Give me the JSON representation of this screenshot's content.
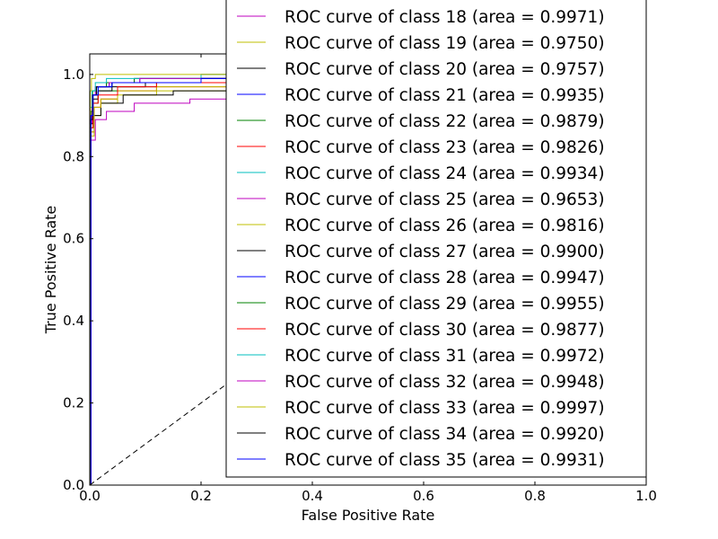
{
  "chart_data": {
    "type": "line",
    "title": "",
    "xlabel": "False Positive Rate",
    "ylabel": "True Positive Rate",
    "xlim": [
      0.0,
      1.0
    ],
    "ylim": [
      0.0,
      1.05
    ],
    "grid": false,
    "legend_placement": "top-right, extending above the plot area",
    "x_ticks": [
      "0.0",
      "0.2",
      "0.4",
      "0.6",
      "0.8",
      "1.0"
    ],
    "y_ticks": [
      "0.0",
      "0.2",
      "0.4",
      "0.6",
      "0.8",
      "1.0"
    ],
    "chance_line": {
      "x": [
        0,
        1
      ],
      "y": [
        0,
        1
      ],
      "style": "dashed",
      "color": "#000000"
    },
    "series": [
      {
        "name": "ROC curve of class 18 (area = 0.9971)",
        "color": "#bf00bf",
        "x": [
          0,
          0.001,
          0.004,
          0.01,
          0.03,
          0.08,
          0.2,
          1.0
        ],
        "y": [
          0,
          0.88,
          0.95,
          0.97,
          0.98,
          0.99,
          1.0,
          1.0
        ]
      },
      {
        "name": "ROC curve of class 19 (area = 0.9750)",
        "color": "#bfbf00",
        "x": [
          0,
          0.002,
          0.008,
          0.02,
          0.05,
          0.12,
          0.25,
          1.0
        ],
        "y": [
          0,
          0.85,
          0.9,
          0.93,
          0.95,
          0.96,
          0.97,
          1.0
        ]
      },
      {
        "name": "ROC curve of class 20 (area = 0.9757)",
        "color": "#000000",
        "x": [
          0,
          0.002,
          0.008,
          0.02,
          0.06,
          0.15,
          0.3,
          1.0
        ],
        "y": [
          0,
          0.86,
          0.9,
          0.93,
          0.95,
          0.96,
          0.98,
          1.0
        ]
      },
      {
        "name": "ROC curve of class 21 (area = 0.9935)",
        "color": "#0000ff",
        "x": [
          0,
          0.002,
          0.006,
          0.015,
          0.04,
          0.1,
          0.2,
          1.0
        ],
        "y": [
          0,
          0.9,
          0.95,
          0.97,
          0.98,
          0.98,
          0.99,
          1.0
        ]
      },
      {
        "name": "ROC curve of class 22 (area = 0.9879)",
        "color": "#008000",
        "x": [
          0,
          0.002,
          0.006,
          0.015,
          0.05,
          0.12,
          0.25,
          1.0
        ],
        "y": [
          0,
          0.87,
          0.93,
          0.96,
          0.97,
          0.98,
          0.99,
          1.0
        ]
      },
      {
        "name": "ROC curve of class 23 (area = 0.9826)",
        "color": "#ff0000",
        "x": [
          0,
          0.002,
          0.008,
          0.02,
          0.05,
          0.12,
          0.25,
          1.0
        ],
        "y": [
          0,
          0.86,
          0.92,
          0.94,
          0.96,
          0.97,
          0.98,
          1.0
        ]
      },
      {
        "name": "ROC curve of class 24 (area = 0.9934)",
        "color": "#00bfbf",
        "x": [
          0,
          0.002,
          0.006,
          0.015,
          0.04,
          0.1,
          0.2,
          1.0
        ],
        "y": [
          0,
          0.9,
          0.95,
          0.97,
          0.98,
          0.98,
          0.99,
          1.0
        ]
      },
      {
        "name": "ROC curve of class 25 (area = 0.9653)",
        "color": "#bf00bf",
        "x": [
          0,
          0.002,
          0.01,
          0.03,
          0.08,
          0.18,
          0.3,
          1.0
        ],
        "y": [
          0,
          0.84,
          0.89,
          0.91,
          0.93,
          0.94,
          0.94,
          1.0
        ]
      },
      {
        "name": "ROC curve of class 26 (area = 0.9816)",
        "color": "#bfbf00",
        "x": [
          0,
          0.002,
          0.008,
          0.02,
          0.05,
          0.12,
          0.25,
          1.0
        ],
        "y": [
          0,
          0.86,
          0.92,
          0.94,
          0.96,
          0.97,
          0.98,
          1.0
        ]
      },
      {
        "name": "ROC curve of class 27 (area = 0.9900)",
        "color": "#000000",
        "x": [
          0,
          0.002,
          0.006,
          0.015,
          0.04,
          0.1,
          0.2,
          1.0
        ],
        "y": [
          0,
          0.88,
          0.94,
          0.96,
          0.97,
          0.98,
          0.99,
          1.0
        ]
      },
      {
        "name": "ROC curve of class 28 (area = 0.9947)",
        "color": "#0000ff",
        "x": [
          0,
          0.002,
          0.005,
          0.012,
          0.035,
          0.09,
          0.2,
          1.0
        ],
        "y": [
          0,
          0.9,
          0.95,
          0.97,
          0.98,
          0.99,
          0.99,
          1.0
        ]
      },
      {
        "name": "ROC curve of class 29 (area = 0.9955)",
        "color": "#008000",
        "x": [
          0,
          0.002,
          0.005,
          0.012,
          0.03,
          0.08,
          0.2,
          1.0
        ],
        "y": [
          0,
          0.91,
          0.96,
          0.97,
          0.98,
          0.99,
          1.0,
          1.0
        ]
      },
      {
        "name": "ROC curve of class 30 (area = 0.9877)",
        "color": "#ff0000",
        "x": [
          0,
          0.002,
          0.006,
          0.015,
          0.05,
          0.12,
          0.25,
          1.0
        ],
        "y": [
          0,
          0.87,
          0.93,
          0.95,
          0.97,
          0.98,
          0.98,
          1.0
        ]
      },
      {
        "name": "ROC curve of class 31 (area = 0.9972)",
        "color": "#00bfbf",
        "x": [
          0,
          0.001,
          0.004,
          0.01,
          0.03,
          0.08,
          0.2,
          1.0
        ],
        "y": [
          0,
          0.92,
          0.96,
          0.98,
          0.99,
          0.99,
          1.0,
          1.0
        ]
      },
      {
        "name": "ROC curve of class 32 (area = 0.9948)",
        "color": "#bf00bf",
        "x": [
          0,
          0.002,
          0.005,
          0.012,
          0.035,
          0.09,
          0.2,
          1.0
        ],
        "y": [
          0,
          0.9,
          0.95,
          0.97,
          0.98,
          0.99,
          0.99,
          1.0
        ]
      },
      {
        "name": "ROC curve of class 33 (area = 0.9997)",
        "color": "#bfbf00",
        "x": [
          0,
          0.001,
          0.003,
          0.01,
          0.03,
          0.08,
          0.2,
          1.0
        ],
        "y": [
          0,
          0.96,
          0.99,
          1.0,
          1.0,
          1.0,
          1.0,
          1.0
        ]
      },
      {
        "name": "ROC curve of class 34 (area = 0.9920)",
        "color": "#000000",
        "x": [
          0,
          0.002,
          0.005,
          0.012,
          0.04,
          0.1,
          0.2,
          1.0
        ],
        "y": [
          0,
          0.89,
          0.95,
          0.97,
          0.98,
          0.98,
          0.99,
          1.0
        ]
      },
      {
        "name": "ROC curve of class 35 (area = 0.9931)",
        "color": "#0000ff",
        "x": [
          0,
          0.002,
          0.006,
          0.015,
          0.04,
          0.1,
          0.2,
          1.0
        ],
        "y": [
          0,
          0.9,
          0.95,
          0.97,
          0.98,
          0.98,
          0.99,
          1.0
        ]
      }
    ]
  }
}
